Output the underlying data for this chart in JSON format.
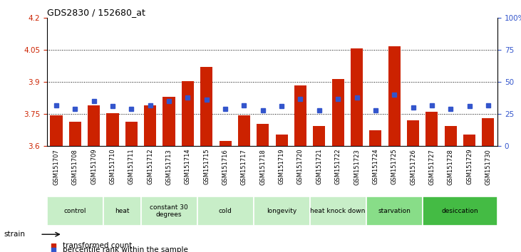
{
  "title": "GDS2830 / 152680_at",
  "samples": [
    "GSM151707",
    "GSM151708",
    "GSM151709",
    "GSM151710",
    "GSM151711",
    "GSM151712",
    "GSM151713",
    "GSM151714",
    "GSM151715",
    "GSM151716",
    "GSM151717",
    "GSM151718",
    "GSM151719",
    "GSM151720",
    "GSM151721",
    "GSM151722",
    "GSM151723",
    "GSM151724",
    "GSM151725",
    "GSM151726",
    "GSM151727",
    "GSM151728",
    "GSM151729",
    "GSM151730"
  ],
  "bar_values": [
    3.745,
    3.715,
    3.79,
    3.755,
    3.715,
    3.79,
    3.83,
    3.905,
    3.97,
    3.625,
    3.745,
    3.705,
    3.655,
    3.885,
    3.695,
    3.915,
    4.055,
    3.675,
    4.065,
    3.72,
    3.76,
    3.695,
    3.655,
    3.73
  ],
  "blue_pct": [
    32,
    29,
    35,
    31,
    29,
    32,
    35,
    38,
    36,
    29,
    32,
    28,
    31,
    37,
    28,
    37,
    38,
    28,
    40,
    30,
    32,
    29,
    31,
    32
  ],
  "ylim": [
    3.6,
    4.2
  ],
  "yticks_left": [
    3.6,
    3.75,
    3.9,
    4.05,
    4.2
  ],
  "dotted_yticks": [
    3.75,
    3.9,
    4.05
  ],
  "y2ticks": [
    0,
    25,
    50,
    75,
    100
  ],
  "bar_color": "#cc2200",
  "blue_color": "#3355cc",
  "groups": [
    {
      "label": "control",
      "start": 0,
      "end": 2,
      "color": "#c8eec8"
    },
    {
      "label": "heat",
      "start": 3,
      "end": 4,
      "color": "#c8eec8"
    },
    {
      "label": "constant 30\ndegrees",
      "start": 5,
      "end": 7,
      "color": "#c8eec8"
    },
    {
      "label": "cold",
      "start": 8,
      "end": 10,
      "color": "#c8eec8"
    },
    {
      "label": "longevity",
      "start": 11,
      "end": 13,
      "color": "#c8eec8"
    },
    {
      "label": "heat knock down",
      "start": 14,
      "end": 16,
      "color": "#c8eec8"
    },
    {
      "label": "starvation",
      "start": 17,
      "end": 19,
      "color": "#88dd88"
    },
    {
      "label": "desiccation",
      "start": 20,
      "end": 23,
      "color": "#44bb44"
    }
  ]
}
